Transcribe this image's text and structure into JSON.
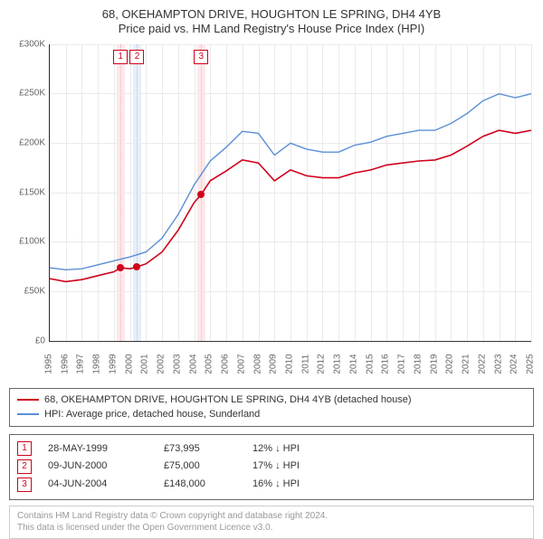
{
  "title_line1": "68, OKEHAMPTON DRIVE, HOUGHTON LE SPRING, DH4 4YB",
  "title_line2": "Price paid vs. HM Land Registry's House Price Index (HPI)",
  "chart": {
    "type": "line",
    "x_min_year": 1995,
    "x_max_year": 2025,
    "y_min": 0,
    "y_max": 300000,
    "y_step": 50000,
    "y_tick_labels": [
      "£0",
      "£50K",
      "£100K",
      "£150K",
      "£200K",
      "£250K",
      "£300K"
    ],
    "x_tick_years": [
      1995,
      1996,
      1997,
      1998,
      1999,
      2000,
      2001,
      2002,
      2003,
      2004,
      2005,
      2006,
      2007,
      2008,
      2009,
      2010,
      2011,
      2012,
      2013,
      2014,
      2015,
      2016,
      2017,
      2018,
      2019,
      2020,
      2021,
      2022,
      2023,
      2024,
      2025
    ],
    "background_color": "#ffffff",
    "grid_color": "#eaeaea",
    "axis_color": "#333333",
    "series": [
      {
        "id": "property",
        "label": "68, OKEHAMPTON DRIVE, HOUGHTON LE SPRING, DH4 4YB (detached house)",
        "color": "#d0021b",
        "width": 1.6,
        "points": [
          [
            1995.0,
            63000
          ],
          [
            1996.0,
            60000
          ],
          [
            1997.0,
            62000
          ],
          [
            1998.0,
            66000
          ],
          [
            1999.0,
            70000
          ],
          [
            1999.41,
            73995
          ],
          [
            2000.0,
            73000
          ],
          [
            2000.44,
            75000
          ],
          [
            2001.0,
            78000
          ],
          [
            2002.0,
            90000
          ],
          [
            2003.0,
            112000
          ],
          [
            2004.0,
            140000
          ],
          [
            2004.43,
            148000
          ],
          [
            2005.0,
            162000
          ],
          [
            2006.0,
            172000
          ],
          [
            2007.0,
            183000
          ],
          [
            2008.0,
            180000
          ],
          [
            2009.0,
            162000
          ],
          [
            2010.0,
            173000
          ],
          [
            2011.0,
            167000
          ],
          [
            2012.0,
            165000
          ],
          [
            2013.0,
            165000
          ],
          [
            2014.0,
            170000
          ],
          [
            2015.0,
            173000
          ],
          [
            2016.0,
            178000
          ],
          [
            2017.0,
            180000
          ],
          [
            2018.0,
            182000
          ],
          [
            2019.0,
            183000
          ],
          [
            2020.0,
            188000
          ],
          [
            2021.0,
            197000
          ],
          [
            2022.0,
            207000
          ],
          [
            2023.0,
            213000
          ],
          [
            2024.0,
            210000
          ],
          [
            2025.0,
            213000
          ]
        ]
      },
      {
        "id": "hpi",
        "label": "HPI: Average price, detached house, Sunderland",
        "color": "#5b8fd6",
        "width": 1.4,
        "points": [
          [
            1995.0,
            74000
          ],
          [
            1996.0,
            72000
          ],
          [
            1997.0,
            73000
          ],
          [
            1998.0,
            77000
          ],
          [
            1999.0,
            81000
          ],
          [
            2000.0,
            85000
          ],
          [
            2001.0,
            90000
          ],
          [
            2002.0,
            104000
          ],
          [
            2003.0,
            128000
          ],
          [
            2004.0,
            158000
          ],
          [
            2005.0,
            182000
          ],
          [
            2006.0,
            196000
          ],
          [
            2007.0,
            212000
          ],
          [
            2008.0,
            210000
          ],
          [
            2009.0,
            188000
          ],
          [
            2010.0,
            200000
          ],
          [
            2011.0,
            194000
          ],
          [
            2012.0,
            191000
          ],
          [
            2013.0,
            191000
          ],
          [
            2014.0,
            198000
          ],
          [
            2015.0,
            201000
          ],
          [
            2016.0,
            207000
          ],
          [
            2017.0,
            210000
          ],
          [
            2018.0,
            213000
          ],
          [
            2019.0,
            213000
          ],
          [
            2020.0,
            220000
          ],
          [
            2021.0,
            230000
          ],
          [
            2022.0,
            243000
          ],
          [
            2023.0,
            250000
          ],
          [
            2024.0,
            246000
          ],
          [
            2025.0,
            250000
          ]
        ]
      }
    ],
    "marker_bands": [
      {
        "id": 1,
        "year": 1999.41,
        "band_color": "#fce8ea",
        "line_color": "#f2b6bc"
      },
      {
        "id": 2,
        "year": 2000.44,
        "band_color": "#e6eef8",
        "line_color": "#b8c9e2"
      },
      {
        "id": 3,
        "year": 2004.43,
        "band_color": "#fce8ea",
        "line_color": "#f2b6bc"
      }
    ],
    "sale_points": [
      {
        "year": 1999.41,
        "value": 73995
      },
      {
        "year": 2000.44,
        "value": 75000
      },
      {
        "year": 2004.43,
        "value": 148000
      }
    ]
  },
  "legend": {
    "items": [
      {
        "color": "#d0021b",
        "label": "68, OKEHAMPTON DRIVE, HOUGHTON LE SPRING, DH4 4YB (detached house)"
      },
      {
        "color": "#5b8fd6",
        "label": "HPI: Average price, detached house, Sunderland"
      }
    ]
  },
  "sales": [
    {
      "n": "1",
      "date": "28-MAY-1999",
      "price": "£73,995",
      "delta": "12% ↓ HPI"
    },
    {
      "n": "2",
      "date": "09-JUN-2000",
      "price": "£75,000",
      "delta": "17% ↓ HPI"
    },
    {
      "n": "3",
      "date": "04-JUN-2004",
      "price": "£148,000",
      "delta": "16% ↓ HPI"
    }
  ],
  "footer_line1": "Contains HM Land Registry data © Crown copyright and database right 2024.",
  "footer_line2": "This data is licensed under the Open Government Licence v3.0."
}
